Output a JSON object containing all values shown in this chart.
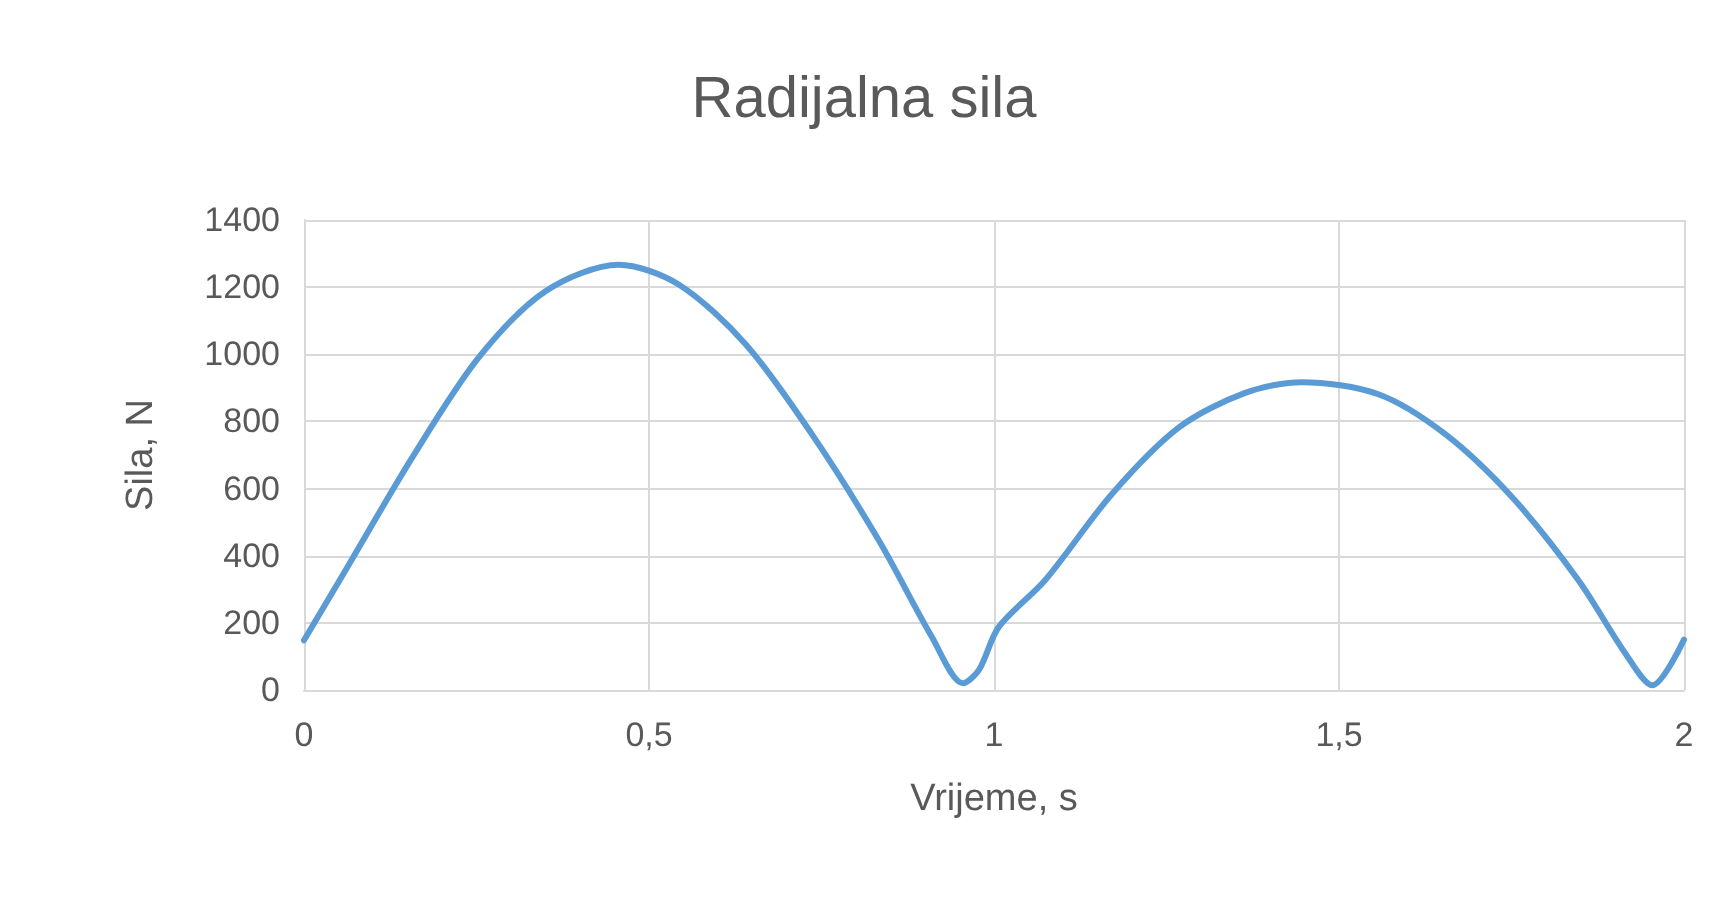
{
  "chart_data": {
    "type": "line",
    "title": "Radijalna sila",
    "xlabel": "Vrijeme, s",
    "ylabel": "Sila, N",
    "x": [
      0,
      0.06,
      0.157,
      0.253,
      0.35,
      0.456,
      0.543,
      0.64,
      0.736,
      0.833,
      0.91,
      0.955,
      0.978,
      1.007,
      1.074,
      1.171,
      1.268,
      1.364,
      1.446,
      1.557,
      1.654,
      1.751,
      1.847,
      1.915,
      1.954,
      2
    ],
    "series": [
      {
        "color": "#5b9bd5",
        "values": [
          148,
          356,
          693,
          990,
          1188,
          1267,
          1208,
          1030,
          762,
          446,
          158,
          20,
          59,
          188,
          327,
          584,
          782,
          885,
          917,
          881,
          762,
          574,
          327,
          109,
          14,
          150
        ]
      }
    ],
    "xlim": [
      0,
      2
    ],
    "xticks": [
      0,
      {
        "value": 0.5,
        "label": "0,5"
      },
      1,
      {
        "value": 1.5,
        "label": "1,5"
      },
      2
    ],
    "ylim": [
      0,
      1400
    ],
    "yticks": [
      0,
      200,
      400,
      600,
      800,
      1000,
      1200,
      1400
    ],
    "grid": true,
    "marker": "none",
    "line_style": "solid"
  }
}
